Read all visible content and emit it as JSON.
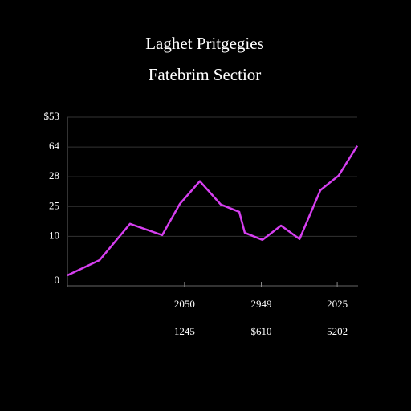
{
  "chart_data": {
    "type": "line",
    "title": "Laghet Pritgegies",
    "subtitle": "Fatebrim Sectior",
    "x": [
      0,
      11.1,
      21.6,
      32.7,
      38.8,
      45.7,
      52.9,
      59.3,
      61.2,
      67.3,
      73.7,
      80.1,
      87.3,
      93.6,
      100
    ],
    "series": [
      {
        "color": "#d63ff0",
        "values": [
          0.19,
          0.7,
          1.92,
          1.54,
          2.59,
          3.35,
          2.57,
          2.32,
          1.62,
          1.38,
          1.86,
          1.41,
          3.05,
          3.54,
          4.54
        ]
      }
    ],
    "xlim": [
      0,
      100
    ],
    "ylim": [
      0,
      5.5
    ],
    "yticks": [
      0,
      {
        "value": 1.5,
        "label": "10"
      },
      {
        "value": 2.5,
        "label": "25"
      },
      {
        "value": 3.5,
        "label": "28"
      },
      {
        "value": 4.5,
        "label": "64"
      },
      {
        "value": 5.5,
        "label": "$53"
      }
    ],
    "xticks": [
      {
        "value": 40.4,
        "label": "2050"
      },
      {
        "value": 66.9,
        "label": "2949"
      },
      {
        "value": 93.1,
        "label": "2025"
      }
    ],
    "xticks_second_row": [
      "1245",
      "$610",
      "5202"
    ],
    "grid": true
  }
}
